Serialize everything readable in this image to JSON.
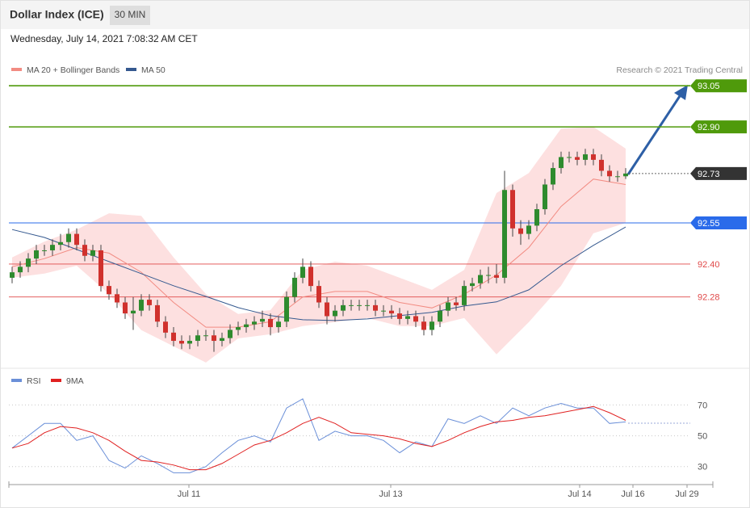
{
  "header": {
    "title": "Dollar Index (ICE)",
    "interval": "30 MIN",
    "timestamp": "Wednesday, July 14, 2021 7:08:32 AM CET",
    "credit": "Research © 2021 Trading Central"
  },
  "chart_data": [
    {
      "type": "candlestick",
      "xlim": [
        -0.4,
        86.8
      ],
      "ylim": [
        92.02,
        93.08
      ],
      "xticks": [
        {
          "value": 21.9,
          "label": "Jul 11"
        },
        {
          "value": 46.9,
          "label": "Jul 13"
        },
        {
          "value": 70.3,
          "label": "Jul 14"
        },
        {
          "value": 76.9,
          "label": "Jul 16"
        },
        {
          "value": 83.6,
          "label": "Jul 29"
        }
      ],
      "up_color": "#2e8b2e",
      "down_color": "#d0312d",
      "open": [
        92.35,
        92.37,
        92.39,
        92.42,
        92.45,
        92.45,
        92.47,
        92.48,
        92.51,
        92.47,
        92.43,
        92.45,
        92.32,
        92.29,
        92.26,
        92.22,
        92.23,
        92.27,
        92.25,
        92.19,
        92.15,
        92.12,
        92.11,
        92.12,
        92.14,
        92.14,
        92.12,
        92.13,
        92.16,
        92.17,
        92.18,
        92.19,
        92.2,
        92.17,
        92.19,
        92.28,
        92.35,
        92.39,
        92.32,
        92.26,
        92.21,
        92.23,
        92.25,
        92.25,
        92.25,
        92.25,
        92.23,
        92.23,
        92.22,
        92.2,
        92.21,
        92.19,
        92.16,
        92.19,
        92.23,
        92.26,
        92.25,
        92.32,
        92.33,
        92.36,
        92.36,
        92.35,
        92.67,
        92.53,
        92.51,
        92.54,
        92.6,
        92.69,
        92.75,
        92.79,
        92.79,
        92.78,
        92.8,
        92.78,
        92.74,
        92.72,
        92.72
      ],
      "high": [
        92.39,
        92.41,
        92.44,
        92.47,
        92.47,
        92.49,
        92.51,
        92.53,
        92.53,
        92.49,
        92.47,
        92.47,
        92.34,
        92.31,
        92.28,
        92.28,
        92.29,
        92.29,
        92.27,
        92.21,
        92.17,
        92.14,
        92.14,
        92.16,
        92.16,
        92.16,
        92.15,
        92.18,
        92.19,
        92.2,
        92.21,
        92.23,
        92.22,
        92.21,
        92.3,
        92.37,
        92.42,
        92.41,
        92.34,
        92.28,
        92.25,
        92.27,
        92.27,
        92.27,
        92.27,
        92.27,
        92.25,
        92.25,
        92.24,
        92.23,
        92.23,
        92.21,
        92.21,
        92.25,
        92.28,
        92.28,
        92.34,
        92.35,
        92.38,
        92.39,
        92.4,
        92.74,
        92.69,
        92.56,
        92.56,
        92.62,
        92.71,
        92.77,
        92.81,
        92.81,
        92.81,
        92.82,
        92.82,
        92.8,
        92.76,
        92.74,
        92.75
      ],
      "low": [
        92.33,
        92.35,
        92.37,
        92.4,
        92.43,
        92.43,
        92.45,
        92.46,
        92.45,
        92.41,
        92.41,
        92.3,
        92.27,
        92.24,
        92.2,
        92.16,
        92.21,
        92.23,
        92.17,
        92.13,
        92.1,
        92.09,
        92.09,
        92.1,
        92.12,
        92.08,
        92.1,
        92.11,
        92.14,
        92.15,
        92.16,
        92.17,
        92.14,
        92.15,
        92.17,
        92.26,
        92.33,
        92.3,
        92.24,
        92.18,
        92.19,
        92.21,
        92.23,
        92.23,
        92.23,
        92.21,
        92.21,
        92.2,
        92.18,
        92.18,
        92.17,
        92.14,
        92.14,
        92.17,
        92.21,
        92.23,
        92.23,
        92.3,
        92.31,
        92.33,
        92.33,
        92.33,
        92.5,
        92.47,
        92.49,
        92.52,
        92.58,
        92.67,
        92.73,
        92.77,
        92.76,
        92.76,
        92.76,
        92.72,
        92.7,
        92.7,
        92.71
      ],
      "close": [
        92.37,
        92.39,
        92.42,
        92.45,
        92.45,
        92.47,
        92.48,
        92.51,
        92.47,
        92.43,
        92.45,
        92.32,
        92.29,
        92.26,
        92.22,
        92.23,
        92.27,
        92.25,
        92.19,
        92.15,
        92.12,
        92.11,
        92.12,
        92.14,
        92.14,
        92.12,
        92.13,
        92.16,
        92.17,
        92.18,
        92.19,
        92.2,
        92.17,
        92.19,
        92.28,
        92.35,
        92.39,
        92.32,
        92.26,
        92.21,
        92.23,
        92.25,
        92.25,
        92.25,
        92.25,
        92.23,
        92.23,
        92.22,
        92.2,
        92.21,
        92.19,
        92.16,
        92.19,
        92.23,
        92.26,
        92.25,
        92.32,
        92.33,
        92.36,
        92.36,
        92.35,
        92.67,
        92.53,
        92.51,
        92.54,
        92.6,
        92.69,
        92.75,
        92.79,
        92.79,
        92.78,
        92.8,
        92.78,
        92.74,
        92.72,
        92.72,
        92.73
      ],
      "overlays": [
        {
          "name": "MA 20 + Bollinger Bands",
          "color": "#f28b82",
          "band_color": "#fde0e0",
          "x": [
            0,
            4,
            8,
            12,
            16,
            20,
            24,
            28,
            32,
            36,
            40,
            44,
            48,
            52,
            56,
            60,
            64,
            68,
            72,
            76
          ],
          "values": [
            92.39,
            92.42,
            92.46,
            92.44,
            92.37,
            92.26,
            92.17,
            92.17,
            92.19,
            92.28,
            92.3,
            92.3,
            92.26,
            92.24,
            92.29,
            92.36,
            92.46,
            92.61,
            92.71,
            92.69
          ],
          "upper": [
            92.424,
            92.482,
            92.526,
            92.585,
            92.576,
            92.424,
            92.291,
            92.218,
            92.232,
            92.379,
            92.409,
            92.394,
            92.35,
            92.306,
            92.379,
            92.659,
            92.732,
            92.894,
            92.9,
            92.821
          ],
          "lower": [
            92.35,
            92.365,
            92.394,
            92.291,
            92.159,
            92.1,
            92.041,
            92.129,
            92.144,
            92.174,
            92.188,
            92.203,
            92.174,
            92.174,
            92.203,
            92.071,
            92.188,
            92.321,
            92.512,
            92.55
          ]
        },
        {
          "name": "MA 50",
          "color": "#35598f",
          "x": [
            0,
            4,
            8,
            12,
            16,
            20,
            24,
            28,
            32,
            36,
            40,
            44,
            48,
            52,
            56,
            60,
            64,
            68,
            72,
            76
          ],
          "values": [
            92.526,
            92.497,
            92.453,
            92.409,
            92.365,
            92.321,
            92.282,
            92.241,
            92.212,
            92.197,
            92.194,
            92.2,
            92.212,
            92.224,
            92.247,
            92.262,
            92.306,
            92.394,
            92.468,
            92.535
          ]
        }
      ],
      "levels": [
        {
          "value": 93.05,
          "label": "93.05",
          "color": "#4f9a0b",
          "kind": "tag",
          "line": "solid"
        },
        {
          "value": 92.9,
          "label": "92.90",
          "color": "#4f9a0b",
          "kind": "tag",
          "line": "solid"
        },
        {
          "value": 92.73,
          "label": "92.73",
          "color": "#333333",
          "kind": "tag",
          "line": "dotted"
        },
        {
          "value": 92.55,
          "label": "92.55",
          "color": "#2a6bea",
          "kind": "tag",
          "line": "solid"
        },
        {
          "value": 92.4,
          "label": "92.40",
          "color": "#e04848",
          "kind": "text",
          "line": "solid"
        },
        {
          "value": 92.28,
          "label": "92.28",
          "color": "#e04848",
          "kind": "text",
          "line": "solid"
        }
      ]
    },
    {
      "type": "line",
      "xlim": [
        -0.4,
        86.8
      ],
      "ylim": [
        22,
        87
      ],
      "yticks": [
        30,
        50,
        70
      ],
      "grid": true,
      "x": [
        0,
        2,
        4,
        6,
        8,
        10,
        12,
        14,
        16,
        18,
        20,
        22,
        24,
        26,
        28,
        30,
        32,
        34,
        36,
        38,
        40,
        42,
        44,
        46,
        48,
        50,
        52,
        54,
        56,
        58,
        60,
        62,
        64,
        66,
        68,
        70,
        72,
        74,
        76
      ],
      "series": [
        {
          "name": "RSI",
          "color": "#6a8fd8",
          "values": [
            42,
            50,
            58,
            58,
            47,
            50,
            34,
            29,
            37,
            32,
            26,
            26,
            30,
            39,
            47,
            50,
            46,
            68,
            74,
            47,
            53,
            50,
            50,
            47,
            39,
            46,
            43,
            61,
            58,
            63,
            58,
            68,
            63,
            68,
            71,
            68,
            68,
            58,
            59
          ]
        },
        {
          "name": "9MA",
          "color": "#e02020",
          "values": [
            42,
            45,
            52,
            56,
            55,
            52,
            47,
            40,
            34,
            33,
            31,
            28,
            28,
            32,
            38,
            44,
            47,
            52,
            58,
            62,
            58,
            52,
            51,
            50,
            48,
            45,
            43,
            47,
            52,
            56,
            59,
            60,
            62,
            63,
            65,
            67,
            69,
            65,
            60
          ]
        }
      ]
    }
  ]
}
